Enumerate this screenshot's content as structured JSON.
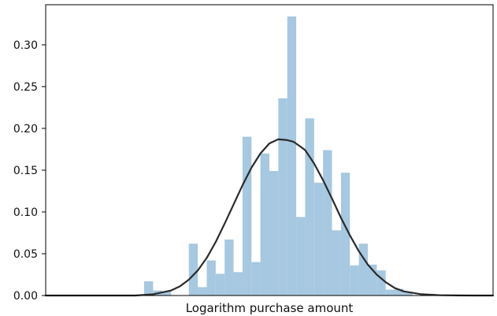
{
  "chart_data": {
    "type": "bar",
    "subtype": "histogram-with-density-curve",
    "xlabel": "Logarithm purchase amount",
    "ylabel": "",
    "ylim": [
      0,
      0.348
    ],
    "yticks": [
      "0.00",
      "0.05",
      "0.10",
      "0.15",
      "0.20",
      "0.25",
      "0.30"
    ],
    "xticks_visible": false,
    "grid": false,
    "bar_color": "#a6c8e0",
    "curve_color": "#2b2b2b",
    "x_domain": [
      0,
      50
    ],
    "bins": [
      {
        "x0": 11,
        "x1": 12,
        "value": 0.017
      },
      {
        "x0": 12,
        "x1": 13,
        "value": 0.006
      },
      {
        "x0": 13,
        "x1": 14,
        "value": 0.005
      },
      {
        "x0": 14,
        "x1": 15,
        "value": 0.0
      },
      {
        "x0": 15,
        "x1": 16,
        "value": 0.0
      },
      {
        "x0": 16,
        "x1": 17,
        "value": 0.062
      },
      {
        "x0": 17,
        "x1": 18,
        "value": 0.01
      },
      {
        "x0": 18,
        "x1": 19,
        "value": 0.042
      },
      {
        "x0": 19,
        "x1": 20,
        "value": 0.026
      },
      {
        "x0": 20,
        "x1": 21,
        "value": 0.067
      },
      {
        "x0": 21,
        "x1": 22,
        "value": 0.028
      },
      {
        "x0": 22,
        "x1": 23,
        "value": 0.19
      },
      {
        "x0": 23,
        "x1": 24,
        "value": 0.04
      },
      {
        "x0": 24,
        "x1": 25,
        "value": 0.17
      },
      {
        "x0": 25,
        "x1": 26,
        "value": 0.149
      },
      {
        "x0": 26,
        "x1": 27,
        "value": 0.236
      },
      {
        "x0": 27,
        "x1": 28,
        "value": 0.334
      },
      {
        "x0": 28,
        "x1": 29,
        "value": 0.094
      },
      {
        "x0": 29,
        "x1": 30,
        "value": 0.212
      },
      {
        "x0": 30,
        "x1": 31,
        "value": 0.135
      },
      {
        "x0": 31,
        "x1": 32,
        "value": 0.174
      },
      {
        "x0": 32,
        "x1": 33,
        "value": 0.078
      },
      {
        "x0": 33,
        "x1": 34,
        "value": 0.147
      },
      {
        "x0": 34,
        "x1": 35,
        "value": 0.036
      },
      {
        "x0": 35,
        "x1": 36,
        "value": 0.062
      },
      {
        "x0": 36,
        "x1": 37,
        "value": 0.037
      },
      {
        "x0": 37,
        "x1": 38,
        "value": 0.03
      },
      {
        "x0": 38,
        "x1": 39,
        "value": 0.007
      },
      {
        "x0": 39,
        "x1": 40,
        "value": 0.008
      },
      {
        "x0": 40,
        "x1": 41,
        "value": 0.004
      }
    ],
    "density_curve": {
      "x": [
        0,
        2,
        4,
        6,
        8,
        10,
        12,
        14,
        15,
        16,
        17,
        18,
        19,
        20,
        21,
        22,
        23,
        24,
        25,
        26,
        27,
        27.7,
        28.5,
        29,
        30,
        31,
        32,
        33,
        34,
        35,
        36,
        37,
        38,
        39,
        40,
        42,
        44,
        46,
        48,
        50
      ],
      "y": [
        0,
        0,
        0,
        0,
        0,
        0,
        0.0015,
        0.006,
        0.011,
        0.019,
        0.03,
        0.045,
        0.064,
        0.086,
        0.109,
        0.132,
        0.153,
        0.17,
        0.182,
        0.187,
        0.186,
        0.184,
        0.178,
        0.174,
        0.158,
        0.138,
        0.116,
        0.093,
        0.072,
        0.053,
        0.037,
        0.025,
        0.016,
        0.009,
        0.005,
        0.0015,
        0.0004,
        0.0001,
        0,
        0
      ]
    }
  }
}
